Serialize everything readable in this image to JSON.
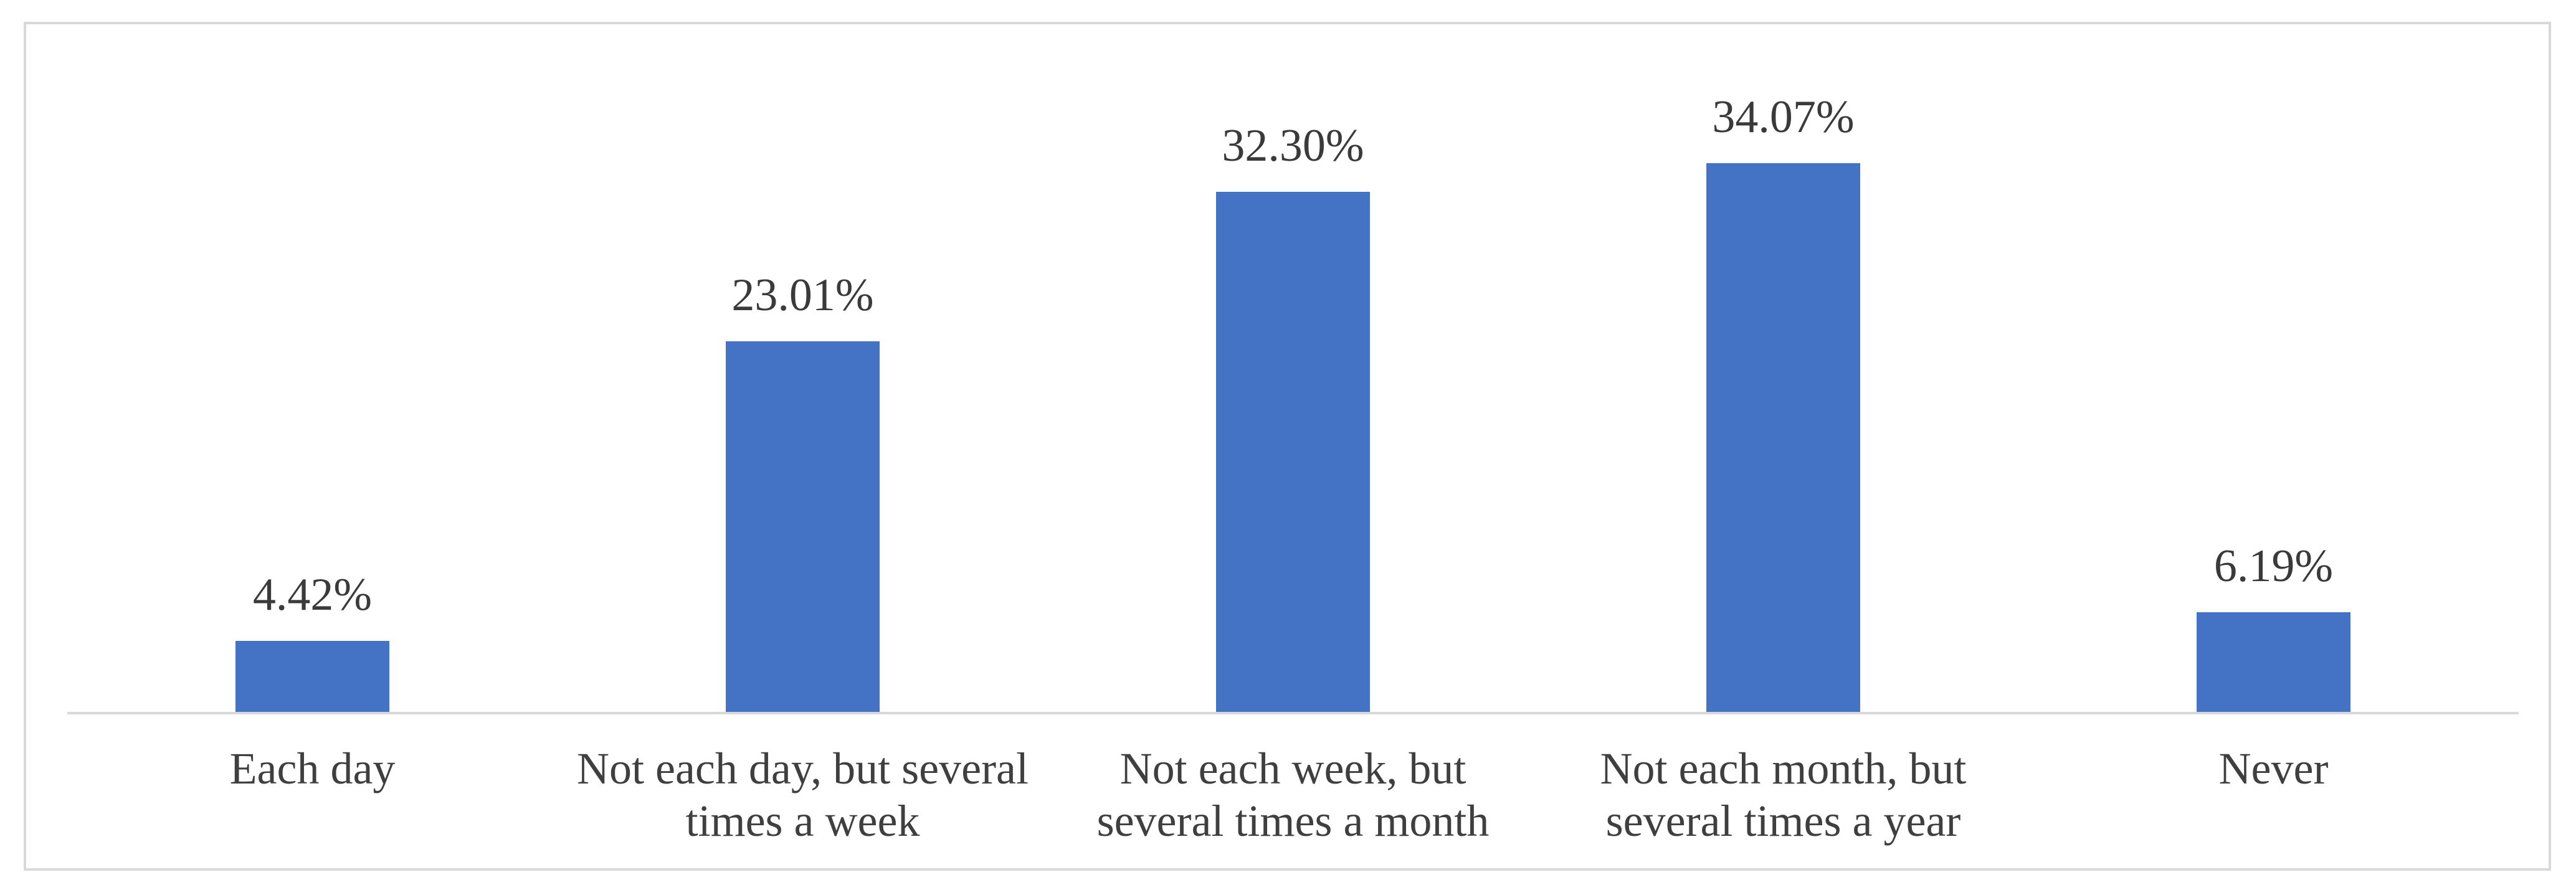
{
  "chart_data": {
    "type": "bar",
    "title": "",
    "xlabel": "",
    "ylabel": "",
    "categories": [
      "Each day",
      "Not each day, but several\ntimes a week",
      "Not each week, but\nseveral times a month",
      "Not each month, but\nseveral times a year",
      "Never"
    ],
    "values": [
      4.42,
      23.01,
      32.3,
      34.07,
      6.19
    ],
    "data_labels": [
      "4.42%",
      "23.01%",
      "32.30%",
      "34.07%",
      "6.19%"
    ],
    "ylim": [
      0,
      40
    ],
    "grid": false,
    "legend": false,
    "y_axis_visible": false,
    "bar_color": "#4472C4",
    "axis_line_color": "#D9D9D9",
    "frame_border_color": "#D9D9D9",
    "data_label_color": "#3A3A3A",
    "category_label_color": "#3F3F3F"
  }
}
